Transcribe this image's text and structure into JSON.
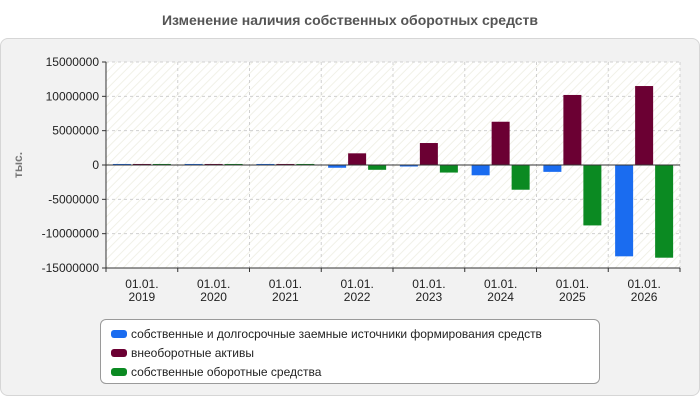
{
  "chart_data": {
    "type": "bar",
    "title": "Изменение наличия собственных оборотных средств",
    "ylabel": "тыс.",
    "xlabel": "",
    "ylim": [
      -15000000,
      15000000
    ],
    "yticks": [
      15000000,
      10000000,
      5000000,
      0,
      -5000000,
      -10000000,
      -15000000
    ],
    "ytick_labels": [
      "15000000",
      "10000000",
      "5000000",
      "0",
      "-5000000",
      "-10000000",
      "-15000000"
    ],
    "categories": [
      {
        "line1": "01.01.",
        "line2": "2019"
      },
      {
        "line1": "01.01.",
        "line2": "2020"
      },
      {
        "line1": "01.01.",
        "line2": "2021"
      },
      {
        "line1": "01.01.",
        "line2": "2022"
      },
      {
        "line1": "01.01.",
        "line2": "2023"
      },
      {
        "line1": "01.01.",
        "line2": "2024"
      },
      {
        "line1": "01.01.",
        "line2": "2025"
      },
      {
        "line1": "01.01.",
        "line2": "2026"
      }
    ],
    "grid": true,
    "legend_position": "bottom",
    "series": [
      {
        "name": "собственные и долгосрочные заемные источники формирования средств",
        "color": "#1a6cf0",
        "values": [
          150000,
          150000,
          150000,
          -400000,
          -100000,
          -1500000,
          -1000000,
          -13300000
        ]
      },
      {
        "name": "внеоборотные активы",
        "color": "#6b0033",
        "values": [
          150000,
          150000,
          150000,
          1700000,
          3200000,
          6300000,
          10200000,
          11500000
        ]
      },
      {
        "name": "собственные оборотные средства",
        "color": "#0b8a22",
        "values": [
          150000,
          150000,
          150000,
          -700000,
          -1100000,
          -3600000,
          -8800000,
          -13500000
        ]
      }
    ]
  }
}
